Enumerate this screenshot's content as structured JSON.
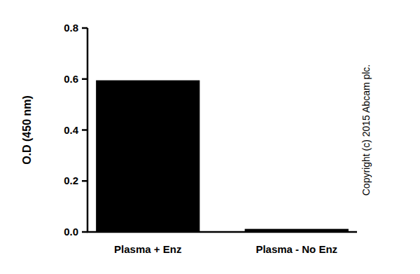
{
  "chart_data": {
    "type": "bar",
    "y_label": "O.D (450 nm)",
    "categories": [
      "Plasma + Enz",
      "Plasma - No Enz"
    ],
    "values": [
      0.595,
      0.012
    ],
    "color": "#000000",
    "ylim": [
      0,
      0.8
    ],
    "yticks": [
      {
        "value": 0,
        "label": "0.0"
      },
      {
        "value": 0.2,
        "label": "0.2"
      },
      {
        "value": 0.4,
        "label": "0.4"
      },
      {
        "value": 0.6,
        "label": "0.6"
      },
      {
        "value": 0.8,
        "label": "0.8"
      }
    ],
    "grid": false,
    "annotations": [
      "Copyright (c) 2015 Abcam plc."
    ]
  }
}
